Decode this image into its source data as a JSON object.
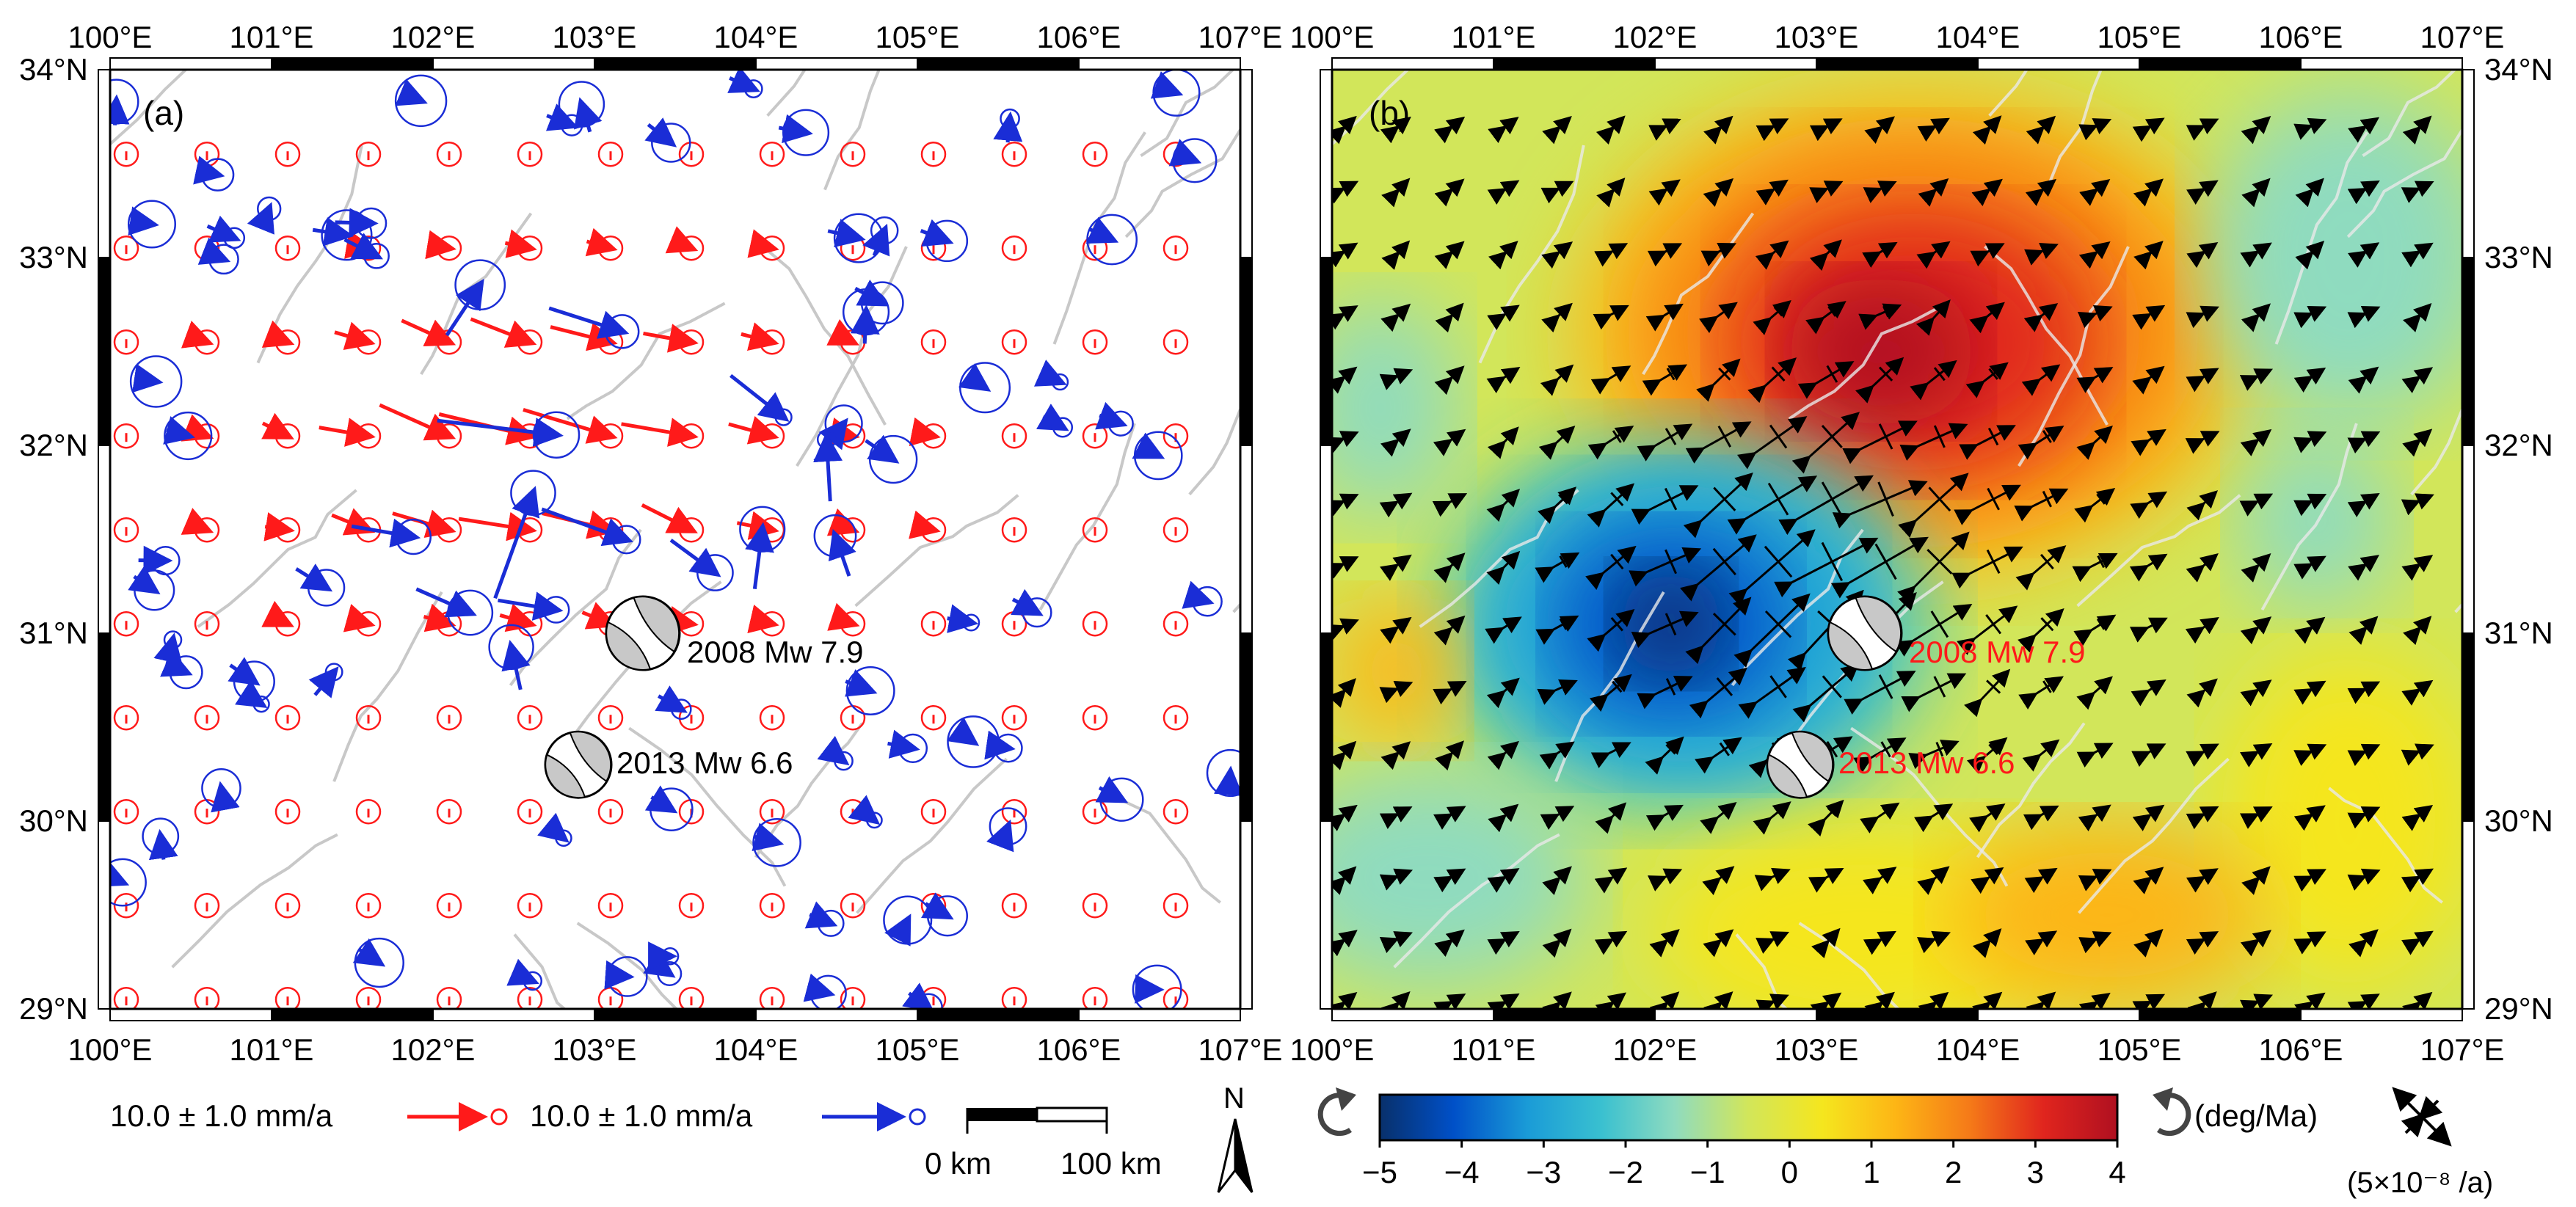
{
  "panels": [
    {
      "id": "a",
      "label": "(a)",
      "mode": "velocity"
    },
    {
      "id": "b",
      "label": "(b)",
      "mode": "rotation"
    }
  ],
  "axes": {
    "lon_ticks": [
      100,
      101,
      102,
      103,
      104,
      105,
      106,
      107
    ],
    "lon_labels": [
      "100°E",
      "101°E",
      "102°E",
      "103°E",
      "104°E",
      "105°E",
      "106°E",
      "107°E"
    ],
    "lat_ticks": [
      29,
      30,
      31,
      32,
      33,
      34
    ],
    "lat_labels": [
      "29°N",
      "30°N",
      "31°N",
      "32°N",
      "33°N",
      "34°N"
    ],
    "lon_range": [
      100,
      107
    ],
    "lat_range": [
      29,
      34
    ]
  },
  "earthquakes": [
    {
      "name": "2008 Mw 7.9",
      "lon": 103.3,
      "lat": 31.0
    },
    {
      "name": "2013 Mw 6.6",
      "lon": 102.9,
      "lat": 30.3
    }
  ],
  "legend": {
    "red_vector_label": "10.0 ± 1.0 mm/a",
    "blue_vector_label": "10.0 ± 1.0 mm/a",
    "scale_start": "0 km",
    "scale_end": "100 km",
    "north_label": "N",
    "unit_label": "(deg/Ma)",
    "strain_label": "(5×10⁻⁸ /a)"
  },
  "colorbar": {
    "min": -5,
    "max": 4,
    "tick_labels": [
      "−5",
      "−4",
      "−3",
      "−2",
      "−1",
      "0",
      "1",
      "2",
      "3",
      "4"
    ],
    "colors": [
      "#08306b",
      "#0050c8",
      "#1a9bd7",
      "#39c0d0",
      "#8fdbbf",
      "#d2e65a",
      "#f5e61e",
      "#fdb515",
      "#f57a18",
      "#e0251e",
      "#b01020"
    ]
  },
  "colors": {
    "red": "#ff1a1a",
    "blue": "#1a2dd6",
    "fault": "#c8c8c8",
    "frame": "#000000"
  },
  "chart_data": [
    {
      "type": "map",
      "title": "(a)",
      "description_values": {
        "x_range_deg": [
          100,
          107
        ],
        "y_range_deg": [
          29,
          34
        ],
        "series": [
          {
            "name": "10.0 ± 1.0 mm/a (red)",
            "values": "GPS velocity vectors on regular grid"
          },
          {
            "name": "10.0 ± 1.0 mm/a (blue)",
            "values": "observed GPS velocity vectors"
          }
        ]
      }
    },
    {
      "type": "heatmap",
      "title": "(b)",
      "zlabel": "(deg/Ma)",
      "zlim": [
        -5,
        4
      ],
      "hotspots": [
        {
          "lon": 103.5,
          "lat": 32.6,
          "value": 3.8
        },
        {
          "lon": 102.1,
          "lat": 31.1,
          "value": -4.6
        }
      ]
    }
  ]
}
